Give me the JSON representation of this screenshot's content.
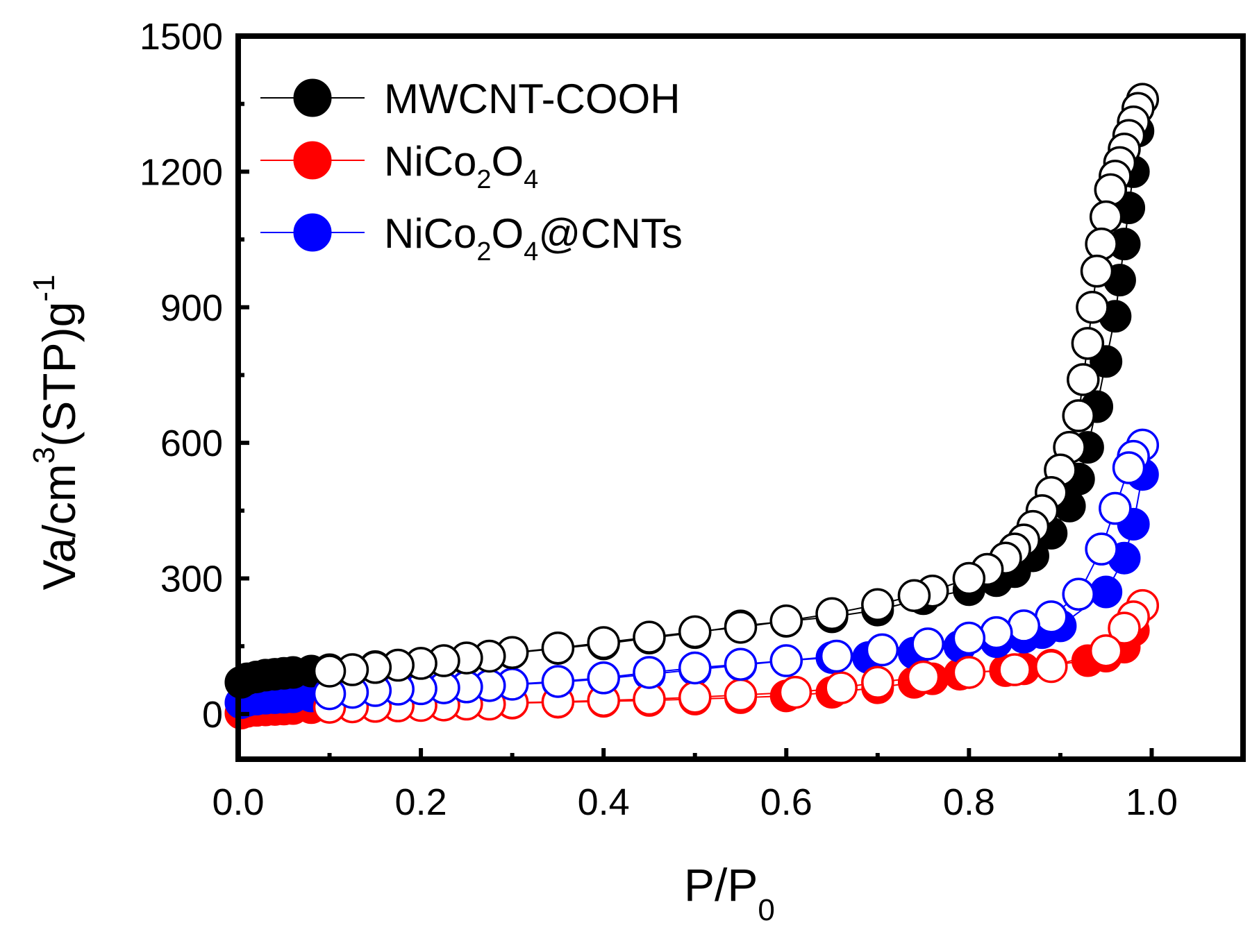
{
  "chart_data": {
    "type": "scatter",
    "title": "",
    "xlabel": {
      "main": "P/P",
      "sub": "0"
    },
    "ylabel": {
      "part1": "Va/cm",
      "sup1": "3",
      "part2": "(STP)g",
      "sup2": "-1"
    },
    "xlim": [
      0.0,
      1.1
    ],
    "ylim": [
      -100,
      1500
    ],
    "xticks": [
      0.0,
      0.2,
      0.4,
      0.6,
      0.8,
      1.0
    ],
    "xtick_labels": [
      "0.0",
      "0.2",
      "0.4",
      "0.6",
      "0.8",
      "1.0"
    ],
    "yticks": [
      0,
      300,
      600,
      900,
      1200,
      1500
    ],
    "ytick_labels": [
      "0",
      "300",
      "600",
      "900",
      "1200",
      "1500"
    ],
    "grid": false,
    "legend_position": "top-left",
    "series": [
      {
        "name": "MWCNT-COOH",
        "legend": {
          "main": "MWCNT-COOH"
        },
        "color": "#000000",
        "adsorption": {
          "x": [
            0.003,
            0.01,
            0.02,
            0.03,
            0.04,
            0.05,
            0.06,
            0.08,
            0.1,
            0.15,
            0.2,
            0.25,
            0.3,
            0.35,
            0.4,
            0.45,
            0.5,
            0.55,
            0.6,
            0.65,
            0.7,
            0.75,
            0.8,
            0.83,
            0.85,
            0.87,
            0.89,
            0.91,
            0.92,
            0.93,
            0.94,
            0.95,
            0.96,
            0.965,
            0.97,
            0.975,
            0.98,
            0.985,
            0.99
          ],
          "y": [
            70,
            78,
            82,
            86,
            88,
            90,
            92,
            95,
            98,
            105,
            112,
            122,
            135,
            145,
            155,
            168,
            180,
            195,
            205,
            215,
            230,
            255,
            275,
            295,
            315,
            350,
            400,
            460,
            520,
            590,
            680,
            780,
            880,
            960,
            1040,
            1120,
            1200,
            1290,
            1360
          ]
        },
        "desorption": {
          "x": [
            0.99,
            0.985,
            0.98,
            0.975,
            0.97,
            0.965,
            0.96,
            0.955,
            0.95,
            0.945,
            0.94,
            0.935,
            0.93,
            0.925,
            0.92,
            0.91,
            0.9,
            0.89,
            0.88,
            0.87,
            0.86,
            0.85,
            0.84,
            0.82,
            0.8,
            0.76,
            0.74,
            0.7,
            0.65,
            0.6,
            0.55,
            0.5,
            0.45,
            0.4,
            0.35,
            0.3,
            0.275,
            0.25,
            0.225,
            0.2,
            0.175,
            0.15,
            0.125,
            0.1
          ],
          "y": [
            1360,
            1340,
            1310,
            1280,
            1250,
            1220,
            1190,
            1160,
            1100,
            1040,
            980,
            900,
            820,
            740,
            660,
            590,
            540,
            490,
            450,
            415,
            385,
            365,
            345,
            320,
            300,
            272,
            262,
            242,
            222,
            206,
            192,
            182,
            170,
            158,
            146,
            136,
            128,
            124,
            118,
            112,
            108,
            103,
            98,
            95
          ]
        }
      },
      {
        "name": "NiCo2O4",
        "legend": {
          "main": "NiCo",
          "sub1": "2",
          "mid": "O",
          "sub2": "4",
          "tail": ""
        },
        "color": "#ff0000",
        "adsorption": {
          "x": [
            0.003,
            0.01,
            0.02,
            0.03,
            0.04,
            0.05,
            0.06,
            0.08,
            0.1,
            0.15,
            0.2,
            0.25,
            0.3,
            0.35,
            0.4,
            0.45,
            0.5,
            0.55,
            0.6,
            0.65,
            0.7,
            0.74,
            0.76,
            0.79,
            0.8,
            0.84,
            0.86,
            0.89,
            0.93,
            0.95,
            0.97,
            0.98,
            0.99
          ],
          "y": [
            2,
            6,
            8,
            9,
            10,
            11,
            12,
            14,
            15,
            18,
            20,
            22,
            24,
            26,
            28,
            30,
            33,
            36,
            40,
            48,
            58,
            70,
            78,
            88,
            92,
            96,
            100,
            108,
            118,
            128,
            148,
            185,
            240
          ]
        },
        "desorption": {
          "x": [
            0.99,
            0.98,
            0.97,
            0.95,
            0.89,
            0.85,
            0.8,
            0.75,
            0.7,
            0.66,
            0.61,
            0.55,
            0.5,
            0.45,
            0.4,
            0.35,
            0.3,
            0.275,
            0.25,
            0.225,
            0.2,
            0.175,
            0.15,
            0.125,
            0.1
          ],
          "y": [
            240,
            215,
            190,
            140,
            105,
            98,
            92,
            82,
            70,
            58,
            48,
            42,
            37,
            33,
            30,
            27,
            25,
            22,
            22,
            20,
            19,
            18,
            17,
            16,
            15
          ]
        }
      },
      {
        "name": "NiCo2O4@CNTs",
        "legend": {
          "main": "NiCo",
          "sub1": "2",
          "mid": "O",
          "sub2": "4",
          "tail": "@CNTs"
        },
        "color": "#0000ff",
        "adsorption": {
          "x": [
            0.003,
            0.01,
            0.02,
            0.03,
            0.04,
            0.05,
            0.06,
            0.08,
            0.1,
            0.15,
            0.2,
            0.25,
            0.3,
            0.35,
            0.4,
            0.45,
            0.5,
            0.55,
            0.6,
            0.65,
            0.69,
            0.74,
            0.79,
            0.83,
            0.86,
            0.88,
            0.9,
            0.95,
            0.97,
            0.98,
            0.99,
            0.99
          ],
          "y": [
            25,
            30,
            33,
            35,
            36,
            37,
            38,
            40,
            42,
            48,
            54,
            60,
            65,
            70,
            78,
            88,
            98,
            108,
            118,
            125,
            125,
            135,
            150,
            160,
            170,
            180,
            195,
            270,
            345,
            420,
            530,
            595
          ]
        },
        "desorption": {
          "x": [
            0.99,
            0.98,
            0.975,
            0.96,
            0.945,
            0.92,
            0.89,
            0.86,
            0.83,
            0.8,
            0.755,
            0.705,
            0.655,
            0.6,
            0.55,
            0.5,
            0.45,
            0.4,
            0.35,
            0.3,
            0.275,
            0.25,
            0.225,
            0.2,
            0.175,
            0.15,
            0.125,
            0.1
          ],
          "y": [
            595,
            570,
            545,
            455,
            365,
            265,
            215,
            195,
            180,
            168,
            155,
            142,
            128,
            118,
            110,
            102,
            92,
            80,
            72,
            66,
            63,
            60,
            58,
            56,
            55,
            52,
            48,
            45
          ]
        }
      }
    ]
  }
}
